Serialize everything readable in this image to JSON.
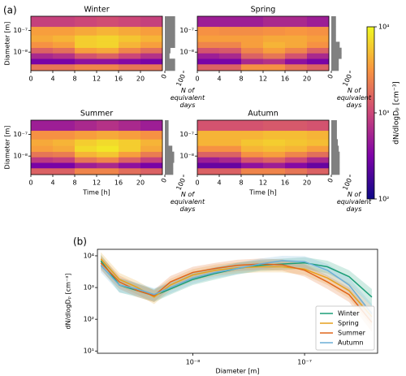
{
  "chart_data": [
    {
      "type": "heatmap",
      "label": "(a)",
      "xlabel": "Time [h]",
      "ylabel": "Diameter [m]",
      "hist_label": "N of equivalent days",
      "xlim": [
        0,
        24
      ],
      "xticks": [
        0,
        4,
        8,
        12,
        16,
        20
      ],
      "ylim": [
        1.4e-09,
        4.5e-07
      ],
      "yticks": [
        {
          "value": 1e-08,
          "label": "10⁻⁸"
        },
        {
          "value": 1e-07,
          "label": "10⁻⁷"
        }
      ],
      "hist_xlim": [
        0,
        100
      ],
      "hist_xticks": [
        0,
        100
      ],
      "time_bins": [
        0,
        4,
        8,
        12,
        16,
        20,
        24
      ],
      "diameter_bins": [
        1.4e-09,
        2.8e-09,
        5e-09,
        9e-09,
        1.6e-08,
        3e-08,
        6e-08,
        1.5e-07,
        4.5e-07
      ],
      "cmap": "plasma",
      "log_color": true,
      "colorbar": {
        "label": "dN/dlogDₚ [cm⁻³]",
        "lim": [
          100,
          10000
        ],
        "ticks": [
          {
            "value": 100,
            "label": "10²"
          },
          {
            "value": 1000,
            "label": "10³"
          },
          {
            "value": 10000,
            "label": "10⁴"
          }
        ]
      },
      "panels": [
        {
          "title": "Winter",
          "hist": [
            55,
            55,
            25,
            30,
            55,
            55,
            55,
            55
          ],
          "values": [
            [
              2000,
              2000,
              2500,
              2500,
              2000,
              2000
            ],
            [
              300,
              300,
              400,
              400,
              350,
              300
            ],
            [
              600,
              700,
              1200,
              1500,
              1000,
              700
            ],
            [
              1500,
              1800,
              3500,
              4000,
              2500,
              1800
            ],
            [
              3000,
              3500,
              6000,
              6500,
              4500,
              3500
            ],
            [
              4000,
              4500,
              6000,
              6500,
              5500,
              4500
            ],
            [
              3500,
              3500,
              4000,
              4500,
              4000,
              3500
            ],
            [
              900,
              900,
              1000,
              1100,
              1000,
              900
            ]
          ]
        },
        {
          "title": "Spring",
          "hist": [
            40,
            40,
            55,
            55,
            45,
            25,
            25,
            25
          ],
          "values": [
            [
              1500,
              1500,
              3000,
              3000,
              2000,
              1500
            ],
            [
              300,
              300,
              600,
              700,
              400,
              300
            ],
            [
              500,
              600,
              1500,
              2000,
              1200,
              600
            ],
            [
              1200,
              1300,
              2500,
              3500,
              2500,
              1500
            ],
            [
              2500,
              2500,
              3500,
              4500,
              4000,
              3000
            ],
            [
              3500,
              3500,
              3500,
              4000,
              4000,
              3500
            ],
            [
              3000,
              2800,
              2800,
              3000,
              3200,
              3000
            ],
            [
              500,
              500,
              500,
              600,
              600,
              500
            ]
          ]
        },
        {
          "title": "Summer",
          "hist": [
            45,
            45,
            50,
            50,
            40,
            20,
            20,
            20
          ],
          "values": [
            [
              1500,
              1500,
              2500,
              2500,
              1800,
              1500
            ],
            [
              300,
              300,
              500,
              600,
              400,
              300
            ],
            [
              800,
              900,
              2000,
              2500,
              1500,
              900
            ],
            [
              2000,
              2200,
              4500,
              5500,
              3500,
              2200
            ],
            [
              3500,
              4000,
              7000,
              8000,
              6000,
              4000
            ],
            [
              4000,
              4500,
              6000,
              7000,
              6000,
              4500
            ],
            [
              3000,
              3000,
              3500,
              4000,
              3500,
              3000
            ],
            [
              500,
              500,
              600,
              700,
              600,
              500
            ]
          ]
        },
        {
          "title": "Autumn",
          "hist": [
            45,
            45,
            45,
            45,
            40,
            35,
            30,
            30
          ],
          "values": [
            [
              1500,
              1500,
              2500,
              2500,
              2000,
              1500
            ],
            [
              250,
              250,
              400,
              500,
              350,
              250
            ],
            [
              500,
              600,
              1200,
              1500,
              1000,
              600
            ],
            [
              1500,
              1500,
              3000,
              3500,
              2500,
              1800
            ],
            [
              3000,
              3000,
              4500,
              5000,
              4500,
              3500
            ],
            [
              4500,
              4500,
              5500,
              6000,
              5500,
              5000
            ],
            [
              4500,
              4500,
              4500,
              5000,
              5000,
              4500
            ],
            [
              1200,
              1200,
              1200,
              1300,
              1300,
              1200
            ]
          ]
        }
      ]
    },
    {
      "type": "line",
      "label": "(b)",
      "xlabel": "Diameter [m]",
      "ylabel": "dN/dlogDₚ [cm⁻³]",
      "log_x": true,
      "log_y": true,
      "legend": "lower right",
      "xlim": [
        1.4e-09,
        4.5e-07
      ],
      "xticks": [
        {
          "value": 1e-08,
          "label": "10⁻⁸"
        },
        {
          "value": 1e-07,
          "label": "10⁻⁷"
        }
      ],
      "ylim": [
        8.5,
        16000
      ],
      "yticks": [
        {
          "value": 10,
          "label": "10¹"
        },
        {
          "value": 100,
          "label": "10²"
        },
        {
          "value": 1000,
          "label": "10³"
        },
        {
          "value": 10000,
          "label": "10⁴"
        }
      ],
      "x": [
        1.5e-09,
        2.2e-09,
        3.2e-09,
        4.5e-09,
        6.3e-09,
        1e-08,
        1.6e-08,
        2.5e-08,
        4e-08,
        6.3e-08,
        1e-07,
        1.6e-07,
        2.5e-07,
        4e-07
      ],
      "series": [
        {
          "name": "Winter",
          "color": "#1b9e77",
          "values": [
            7000,
            1200,
            800,
            550,
            900,
            1800,
            2800,
            4000,
            5000,
            5500,
            6000,
            4500,
            2200,
            500
          ],
          "lower": [
            4000,
            700,
            500,
            350,
            600,
            1200,
            1800,
            2600,
            3300,
            3600,
            3900,
            2800,
            1300,
            250
          ],
          "upper": [
            11000,
            2000,
            1300,
            900,
            1400,
            2800,
            4300,
            6000,
            7500,
            8200,
            9000,
            7000,
            3500,
            900
          ]
        },
        {
          "name": "Spring",
          "color": "#e6a11e",
          "values": [
            8000,
            1800,
            1000,
            500,
            1200,
            2500,
            3500,
            4200,
            4500,
            4500,
            3800,
            2000,
            800,
            120
          ],
          "lower": [
            5000,
            1100,
            600,
            300,
            800,
            1600,
            2300,
            2800,
            3000,
            3000,
            2500,
            1200,
            450,
            60
          ],
          "upper": [
            13000,
            2900,
            1600,
            800,
            1900,
            3800,
            5300,
            6300,
            6800,
            6800,
            5800,
            3200,
            1400,
            250
          ]
        },
        {
          "name": "Summer",
          "color": "#e0651a",
          "values": [
            6000,
            1500,
            800,
            550,
            1500,
            3000,
            4000,
            5000,
            5500,
            5200,
            3500,
            1500,
            600,
            80
          ],
          "lower": [
            3500,
            900,
            500,
            350,
            1000,
            2000,
            2700,
            3300,
            3600,
            3400,
            2200,
            900,
            350,
            40
          ],
          "upper": [
            10000,
            2400,
            1300,
            850,
            2300,
            4500,
            6000,
            7500,
            8200,
            7800,
            5400,
            2400,
            1000,
            160
          ]
        },
        {
          "name": "Autumn",
          "color": "#6baed6",
          "values": [
            5000,
            1200,
            900,
            600,
            1000,
            2000,
            3000,
            4000,
            5500,
            7000,
            6500,
            3500,
            1200,
            150
          ],
          "lower": [
            3000,
            700,
            550,
            380,
            650,
            1300,
            2000,
            2600,
            3600,
            4600,
            4200,
            2200,
            700,
            80
          ],
          "upper": [
            8500,
            2000,
            1400,
            950,
            1500,
            3000,
            4500,
            6000,
            8200,
            10000,
            9800,
            5500,
            2000,
            300
          ]
        }
      ]
    }
  ]
}
